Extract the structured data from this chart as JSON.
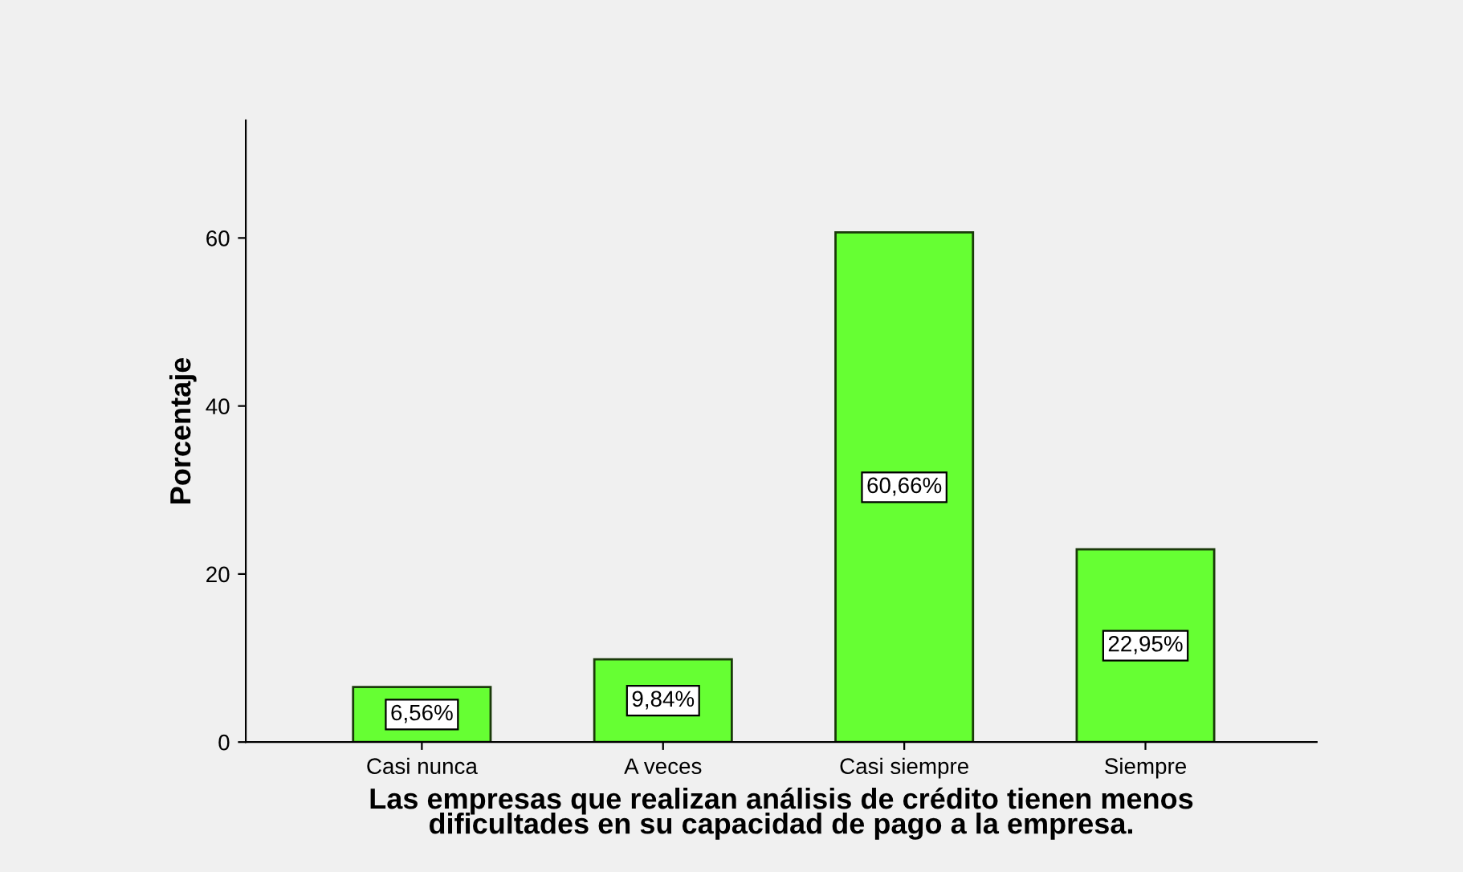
{
  "chart_data": {
    "type": "bar",
    "xlabel": "Las empresas que realizan análisis de crédito tienen menos\ndificultades en su capacidad de pago a la empresa.",
    "ylabel": "Porcentaje",
    "categories": [
      "Casi nunca",
      "A veces",
      "Casi siempre",
      "Siempre"
    ],
    "values": [
      6.56,
      9.84,
      60.66,
      22.95
    ],
    "color": "#66ff33",
    "value_labels": [
      "6,56%",
      "9,84%",
      "60,66%",
      "22,95%"
    ],
    "ylim": [
      0,
      74
    ],
    "yticks": [
      0,
      20,
      40,
      60
    ],
    "grid": false,
    "legend": false
  }
}
